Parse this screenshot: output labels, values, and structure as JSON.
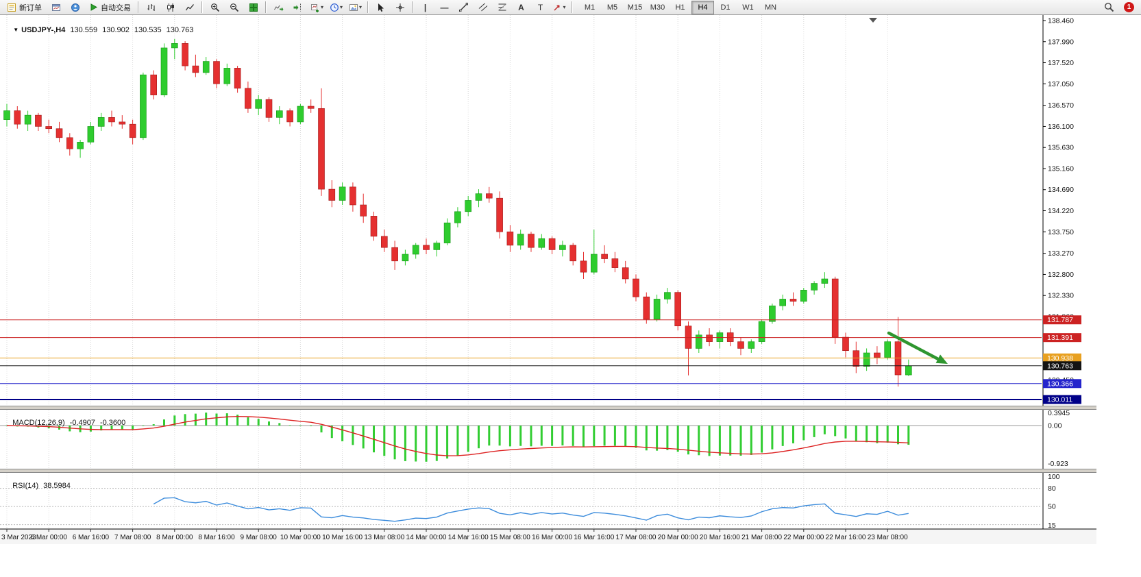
{
  "toolbar": {
    "new_order_label": "新订单",
    "auto_trading_label": "自动交易",
    "timeframes": [
      "M1",
      "M5",
      "M15",
      "M30",
      "H1",
      "H4",
      "D1",
      "W1",
      "MN"
    ],
    "active_timeframe": "H4",
    "notification_count": "1"
  },
  "chart": {
    "symbol_period": "USDJPY-,H4",
    "ohlc": {
      "open": "130.559",
      "high": "130.902",
      "low": "130.535",
      "close": "130.763"
    }
  },
  "macd": {
    "label": "MACD(12,26,9)",
    "main_value": "-0.4907",
    "signal_value": "-0.3600",
    "scale": {
      "max": "0.3945",
      "zero": "0.00",
      "min": "-0.923"
    }
  },
  "rsi": {
    "label": "RSI(14)",
    "value": "38.5984",
    "scale": [
      "100",
      "80",
      "50",
      "15"
    ]
  },
  "chart_data": {
    "type": "candlestick",
    "symbol": "USDJPY-",
    "timeframe": "H4",
    "up_color": "#2ecc2e",
    "down_color": "#e53030",
    "price_axis_ticks": [
      "138.460",
      "137.990",
      "137.520",
      "137.050",
      "136.570",
      "136.100",
      "135.630",
      "135.160",
      "134.690",
      "134.220",
      "133.750",
      "133.270",
      "132.800",
      "132.330",
      "131.860",
      "131.390",
      "130.920",
      "130.450",
      "129.980"
    ],
    "time_labels": [
      "3 Mar 2023",
      "6 Mar 00:00",
      "6 Mar 16:00",
      "7 Mar 08:00",
      "8 Mar 00:00",
      "8 Mar 16:00",
      "9 Mar 08:00",
      "10 Mar 00:00",
      "10 Mar 16:00",
      "13 Mar 08:00",
      "14 Mar 00:00",
      "14 Mar 16:00",
      "15 Mar 08:00",
      "16 Mar 00:00",
      "16 Mar 16:00",
      "17 Mar 08:00",
      "20 Mar 00:00",
      "20 Mar 16:00",
      "21 Mar 08:00",
      "22 Mar 00:00",
      "22 Mar 16:00",
      "23 Mar 08:00"
    ],
    "label_every_n_candles": 4,
    "candles": [
      [
        136.25,
        136.6,
        136.1,
        136.45
      ],
      [
        136.45,
        136.55,
        136.05,
        136.15
      ],
      [
        136.15,
        136.45,
        136.0,
        136.35
      ],
      [
        136.35,
        136.4,
        136.0,
        136.1
      ],
      [
        136.1,
        136.25,
        135.95,
        136.05
      ],
      [
        136.05,
        136.2,
        135.75,
        135.85
      ],
      [
        135.85,
        135.95,
        135.45,
        135.6
      ],
      [
        135.6,
        135.8,
        135.4,
        135.75
      ],
      [
        135.75,
        136.2,
        135.7,
        136.1
      ],
      [
        136.1,
        136.4,
        136.0,
        136.3
      ],
      [
        136.3,
        136.45,
        136.1,
        136.2
      ],
      [
        136.2,
        136.35,
        136.05,
        136.15
      ],
      [
        136.15,
        136.25,
        135.7,
        135.85
      ],
      [
        135.85,
        137.3,
        135.8,
        137.25
      ],
      [
        137.25,
        137.35,
        136.7,
        136.8
      ],
      [
        136.8,
        137.95,
        136.75,
        137.85
      ],
      [
        137.85,
        138.05,
        137.6,
        137.95
      ],
      [
        137.95,
        138.0,
        137.35,
        137.45
      ],
      [
        137.45,
        137.7,
        137.2,
        137.3
      ],
      [
        137.3,
        137.65,
        137.25,
        137.55
      ],
      [
        137.55,
        137.6,
        136.95,
        137.05
      ],
      [
        137.05,
        137.5,
        137.0,
        137.4
      ],
      [
        137.4,
        137.45,
        136.85,
        136.95
      ],
      [
        136.95,
        137.1,
        136.4,
        136.5
      ],
      [
        136.5,
        136.8,
        136.35,
        136.7
      ],
      [
        136.7,
        136.75,
        136.2,
        136.3
      ],
      [
        136.3,
        136.55,
        136.15,
        136.45
      ],
      [
        136.45,
        136.5,
        136.1,
        136.2
      ],
      [
        136.2,
        136.6,
        136.15,
        136.55
      ],
      [
        136.55,
        136.7,
        136.4,
        136.5
      ],
      [
        136.5,
        136.95,
        134.55,
        134.7
      ],
      [
        134.7,
        134.9,
        134.3,
        134.45
      ],
      [
        134.45,
        134.85,
        134.35,
        134.75
      ],
      [
        134.75,
        134.85,
        134.2,
        134.35
      ],
      [
        134.35,
        134.6,
        133.95,
        134.1
      ],
      [
        134.1,
        134.2,
        133.55,
        133.65
      ],
      [
        133.65,
        133.8,
        133.3,
        133.4
      ],
      [
        133.4,
        133.55,
        132.9,
        133.1
      ],
      [
        133.1,
        133.35,
        133.0,
        133.25
      ],
      [
        133.25,
        133.5,
        133.15,
        133.45
      ],
      [
        133.45,
        133.6,
        133.25,
        133.35
      ],
      [
        133.35,
        133.55,
        133.2,
        133.5
      ],
      [
        133.5,
        134.05,
        133.45,
        133.95
      ],
      [
        133.95,
        134.3,
        133.85,
        134.2
      ],
      [
        134.2,
        134.55,
        134.1,
        134.45
      ],
      [
        134.45,
        134.7,
        134.3,
        134.6
      ],
      [
        134.6,
        134.75,
        134.4,
        134.5
      ],
      [
        134.5,
        134.65,
        133.6,
        133.75
      ],
      [
        133.75,
        133.9,
        133.3,
        133.45
      ],
      [
        133.45,
        133.8,
        133.35,
        133.7
      ],
      [
        133.7,
        133.75,
        133.3,
        133.4
      ],
      [
        133.4,
        133.7,
        133.35,
        133.6
      ],
      [
        133.6,
        133.65,
        133.25,
        133.35
      ],
      [
        133.35,
        133.55,
        133.2,
        133.45
      ],
      [
        133.45,
        133.5,
        133.0,
        133.1
      ],
      [
        133.1,
        133.3,
        132.7,
        132.85
      ],
      [
        132.85,
        133.8,
        132.8,
        133.25
      ],
      [
        133.25,
        133.45,
        133.05,
        133.15
      ],
      [
        133.15,
        133.3,
        132.85,
        132.95
      ],
      [
        132.95,
        133.1,
        132.6,
        132.7
      ],
      [
        132.7,
        132.8,
        132.2,
        132.3
      ],
      [
        132.3,
        132.4,
        131.7,
        131.8
      ],
      [
        131.8,
        132.35,
        131.75,
        132.25
      ],
      [
        132.25,
        132.5,
        132.15,
        132.4
      ],
      [
        132.4,
        132.45,
        131.55,
        131.65
      ],
      [
        131.65,
        131.75,
        130.55,
        131.15
      ],
      [
        131.15,
        131.55,
        131.05,
        131.45
      ],
      [
        131.45,
        131.6,
        131.2,
        131.3
      ],
      [
        131.3,
        131.55,
        131.15,
        131.5
      ],
      [
        131.5,
        131.6,
        131.2,
        131.3
      ],
      [
        131.3,
        131.4,
        131.0,
        131.15
      ],
      [
        131.15,
        131.35,
        131.05,
        131.3
      ],
      [
        131.3,
        131.8,
        131.25,
        131.75
      ],
      [
        131.75,
        132.15,
        131.7,
        132.1
      ],
      [
        132.1,
        132.35,
        132.0,
        132.25
      ],
      [
        132.25,
        132.4,
        132.1,
        132.2
      ],
      [
        132.2,
        132.5,
        132.15,
        132.45
      ],
      [
        132.45,
        132.65,
        132.35,
        132.6
      ],
      [
        132.6,
        132.85,
        132.5,
        132.7
      ],
      [
        132.7,
        132.75,
        131.25,
        131.4
      ],
      [
        131.4,
        131.5,
        130.95,
        131.1
      ],
      [
        131.1,
        131.3,
        130.6,
        130.75
      ],
      [
        130.75,
        131.15,
        130.65,
        131.05
      ],
      [
        131.05,
        131.2,
        130.8,
        130.95
      ],
      [
        130.95,
        131.35,
        130.9,
        131.3
      ],
      [
        131.3,
        131.85,
        130.3,
        130.56
      ],
      [
        130.559,
        130.902,
        130.535,
        130.763
      ]
    ],
    "hlines": [
      {
        "price": 131.787,
        "label": "131.787",
        "color": "#cc2222",
        "width": 1
      },
      {
        "price": 131.391,
        "label": "131.391",
        "color": "#cc2222",
        "width": 1
      },
      {
        "price": 130.938,
        "label": "130.938",
        "color": "#e8a020",
        "width": 1
      },
      {
        "price": 130.763,
        "label": "130.763",
        "color": "#141414",
        "width": 1
      },
      {
        "price": 130.366,
        "label": "130.366",
        "color": "#2424cc",
        "width": 1
      },
      {
        "price": 130.011,
        "label": "130.011",
        "color": "#000088",
        "width": 2
      }
    ],
    "arrow": {
      "color": "#2f962f"
    },
    "indicators": {
      "macd": {
        "fast": 12,
        "slow": 26,
        "signal": 9,
        "histogram_color": "#32cd32",
        "signal_color": "#dd2222"
      },
      "rsi": {
        "period": 14,
        "color": "#3c8cdc",
        "levels": [
          80,
          50,
          20
        ],
        "range": [
          15,
          100
        ]
      }
    }
  }
}
